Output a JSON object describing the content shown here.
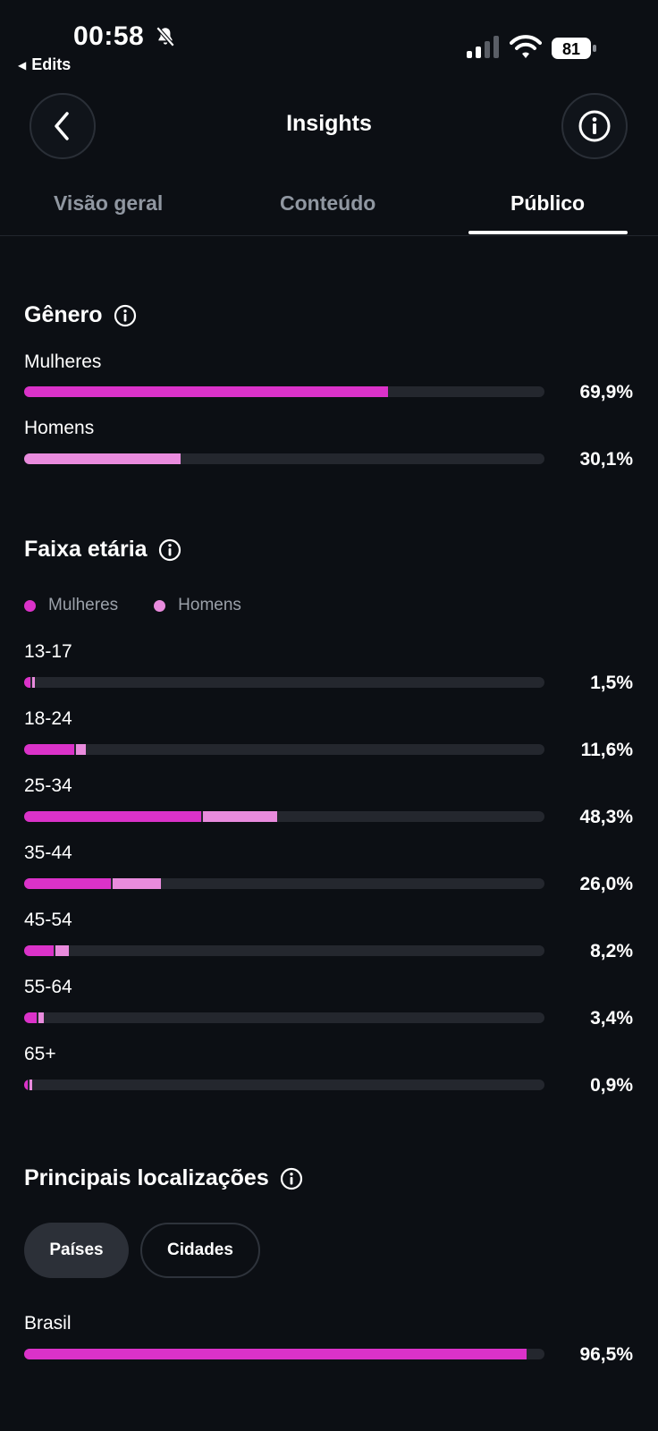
{
  "status_bar": {
    "time": "00:58",
    "back_app": "Edits",
    "battery": "81"
  },
  "header": {
    "title": "Insights"
  },
  "tabs": [
    {
      "label": "Visão geral",
      "active": false
    },
    {
      "label": "Conteúdo",
      "active": false
    },
    {
      "label": "Público",
      "active": true
    }
  ],
  "colors": {
    "women": "#db32c9",
    "men": "#e98bdd",
    "track": "#24272e",
    "background": "#0c0f14"
  },
  "gender": {
    "title": "Gênero",
    "rows": [
      {
        "label": "Mulheres",
        "pct": "69,9%",
        "value": 69.9
      },
      {
        "label": "Homens",
        "pct": "30,1%",
        "value": 30.1
      }
    ]
  },
  "age": {
    "title": "Faixa etária",
    "legend": {
      "women": "Mulheres",
      "men": "Homens"
    },
    "rows": [
      {
        "label": "13-17",
        "pct": "1,5%",
        "women": 1.2,
        "men": 0.3
      },
      {
        "label": "18-24",
        "pct": "11,6%",
        "women": 9.6,
        "men": 2.0
      },
      {
        "label": "25-34",
        "pct": "48,3%",
        "women": 34.0,
        "men": 14.3
      },
      {
        "label": "35-44",
        "pct": "26,0%",
        "women": 16.6,
        "men": 9.4
      },
      {
        "label": "45-54",
        "pct": "8,2%",
        "women": 5.6,
        "men": 2.6
      },
      {
        "label": "55-64",
        "pct": "3,4%",
        "women": 2.4,
        "men": 1.0
      },
      {
        "label": "65+",
        "pct": "0,9%",
        "women": 0.5,
        "men": 0.4
      }
    ]
  },
  "locations": {
    "title": "Principais localizações",
    "chips": [
      {
        "label": "Países",
        "active": true
      },
      {
        "label": "Cidades",
        "active": false
      }
    ],
    "rows": [
      {
        "label": "Brasil",
        "pct": "96,5%",
        "value": 96.5
      }
    ]
  }
}
